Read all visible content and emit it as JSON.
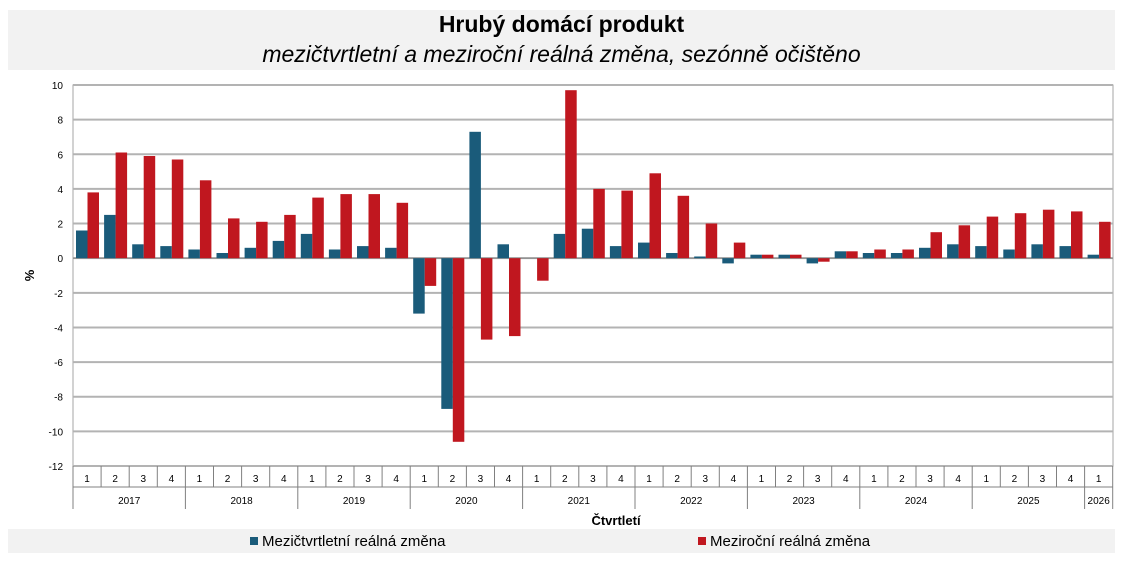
{
  "header": {
    "title": "Hrubý domácí produkt",
    "subtitle": "mezičtvrtletní a meziroční reálná změna, sezónně očištěno"
  },
  "chart_data": {
    "type": "bar",
    "title": "Hrubý domácí produkt",
    "subtitle": "mezičtvrtletní a meziroční reálná změna, sezónně očištěno",
    "ylabel": "%",
    "xlabel": "Čtvrtletí",
    "ylim": [
      -12,
      10
    ],
    "yticks": [
      -12,
      -10,
      -8,
      -6,
      -4,
      -2,
      0,
      2,
      4,
      6,
      8,
      10
    ],
    "grid": true,
    "legend_position": "bottom",
    "years": [
      "2017",
      "2018",
      "2019",
      "2020",
      "2021",
      "2022",
      "2023",
      "2024",
      "2025",
      "2026"
    ],
    "categories": [
      "1",
      "2",
      "3",
      "4",
      "1",
      "2",
      "3",
      "4",
      "1",
      "2",
      "3",
      "4",
      "1",
      "2",
      "3",
      "4",
      "1",
      "2",
      "3",
      "4",
      "1",
      "2",
      "3",
      "4",
      "1",
      "2",
      "3",
      "4",
      "1",
      "2",
      "3",
      "4",
      "1",
      "2",
      "3",
      "4",
      "1"
    ],
    "series": [
      {
        "name": "Mezičtvrtletní reálná změna",
        "color": "#1a5b7a",
        "values": [
          1.6,
          2.5,
          0.8,
          0.7,
          0.5,
          0.3,
          0.6,
          1.0,
          1.4,
          0.5,
          0.7,
          0.6,
          -3.2,
          -8.7,
          7.3,
          0.8,
          0.0,
          1.4,
          1.7,
          0.7,
          0.9,
          0.3,
          0.1,
          -0.3,
          0.2,
          0.2,
          -0.3,
          0.4,
          0.3,
          0.3,
          0.6,
          0.8,
          0.7,
          0.5,
          0.8,
          0.7,
          0.2
        ]
      },
      {
        "name": "Meziroční reálná změna",
        "color": "#c0171f",
        "values": [
          3.8,
          6.1,
          5.9,
          5.7,
          4.5,
          2.3,
          2.1,
          2.5,
          3.5,
          3.7,
          3.7,
          3.2,
          -1.6,
          -10.6,
          -4.7,
          -4.5,
          -1.3,
          9.7,
          4.0,
          3.9,
          4.9,
          3.6,
          2.0,
          0.9,
          0.2,
          0.2,
          -0.2,
          0.4,
          0.5,
          0.5,
          1.5,
          1.9,
          2.4,
          2.6,
          2.8,
          2.7,
          2.1
        ]
      }
    ]
  }
}
